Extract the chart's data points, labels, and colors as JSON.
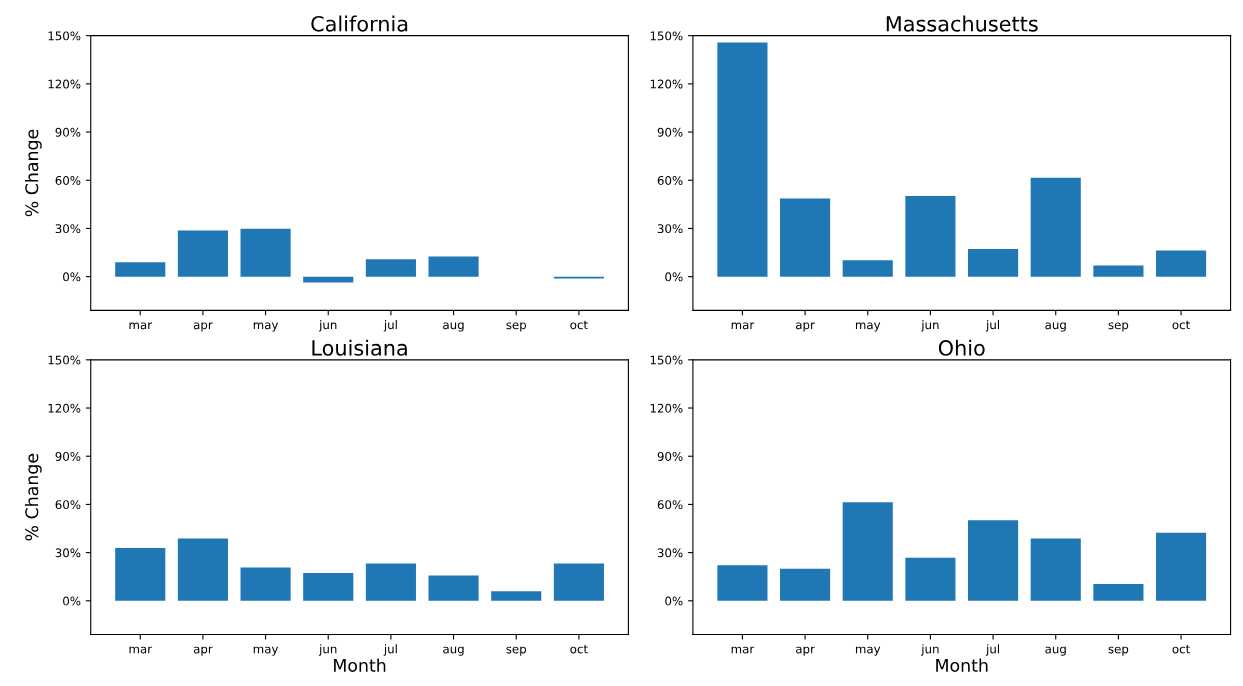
{
  "chart_data": [
    {
      "type": "bar",
      "title": "California",
      "ylabel": "% Change",
      "categories": [
        "mar",
        "apr",
        "may",
        "jun",
        "jul",
        "aug",
        "sep",
        "oct"
      ],
      "values": [
        9,
        28.8,
        29.8,
        -3.7,
        10.8,
        12.5,
        null,
        -1.2
      ],
      "color": "#1f77b4",
      "ylim": [
        -21,
        150
      ],
      "yticks": [
        {
          "value": 0,
          "label": "0%"
        },
        {
          "value": 30,
          "label": "30%"
        },
        {
          "value": 60,
          "label": "60%"
        },
        {
          "value": 90,
          "label": "90%"
        },
        {
          "value": 120,
          "label": "120%"
        },
        {
          "value": 150,
          "label": "150%"
        }
      ],
      "grid": false
    },
    {
      "type": "bar",
      "title": "Massachusetts",
      "categories": [
        "mar",
        "apr",
        "may",
        "jun",
        "jul",
        "aug",
        "sep",
        "oct"
      ],
      "values": [
        145.8,
        48.6,
        10.2,
        50.2,
        17.2,
        61.6,
        7,
        16.3
      ],
      "color": "#1f77b4",
      "ylim": [
        -21,
        150
      ],
      "yticks": [
        {
          "value": 0,
          "label": "0%"
        },
        {
          "value": 30,
          "label": "30%"
        },
        {
          "value": 60,
          "label": "60%"
        },
        {
          "value": 90,
          "label": "90%"
        },
        {
          "value": 120,
          "label": "120%"
        },
        {
          "value": 150,
          "label": "150%"
        }
      ],
      "grid": false
    },
    {
      "type": "bar",
      "title": "Louisiana",
      "xlabel": "Month",
      "ylabel": "% Change",
      "categories": [
        "mar",
        "apr",
        "may",
        "jun",
        "jul",
        "aug",
        "sep",
        "oct"
      ],
      "values": [
        32.8,
        38.8,
        20.8,
        17.3,
        23.3,
        15.7,
        6,
        23.3
      ],
      "color": "#1f77b4",
      "ylim": [
        -21,
        150
      ],
      "yticks": [
        {
          "value": 0,
          "label": "0%"
        },
        {
          "value": 30,
          "label": "30%"
        },
        {
          "value": 60,
          "label": "60%"
        },
        {
          "value": 90,
          "label": "90%"
        },
        {
          "value": 120,
          "label": "120%"
        },
        {
          "value": 150,
          "label": "150%"
        }
      ],
      "grid": false
    },
    {
      "type": "bar",
      "title": "Ohio",
      "xlabel": "Month",
      "categories": [
        "mar",
        "apr",
        "may",
        "jun",
        "jul",
        "aug",
        "sep",
        "oct"
      ],
      "values": [
        22.2,
        19.9,
        61.4,
        26.8,
        50.1,
        38.8,
        10.4,
        42.3
      ],
      "color": "#1f77b4",
      "ylim": [
        -21,
        150
      ],
      "yticks": [
        {
          "value": 0,
          "label": "0%"
        },
        {
          "value": 30,
          "label": "30%"
        },
        {
          "value": 60,
          "label": "60%"
        },
        {
          "value": 90,
          "label": "90%"
        },
        {
          "value": 120,
          "label": "120%"
        },
        {
          "value": 150,
          "label": "150%"
        }
      ],
      "grid": false
    }
  ]
}
